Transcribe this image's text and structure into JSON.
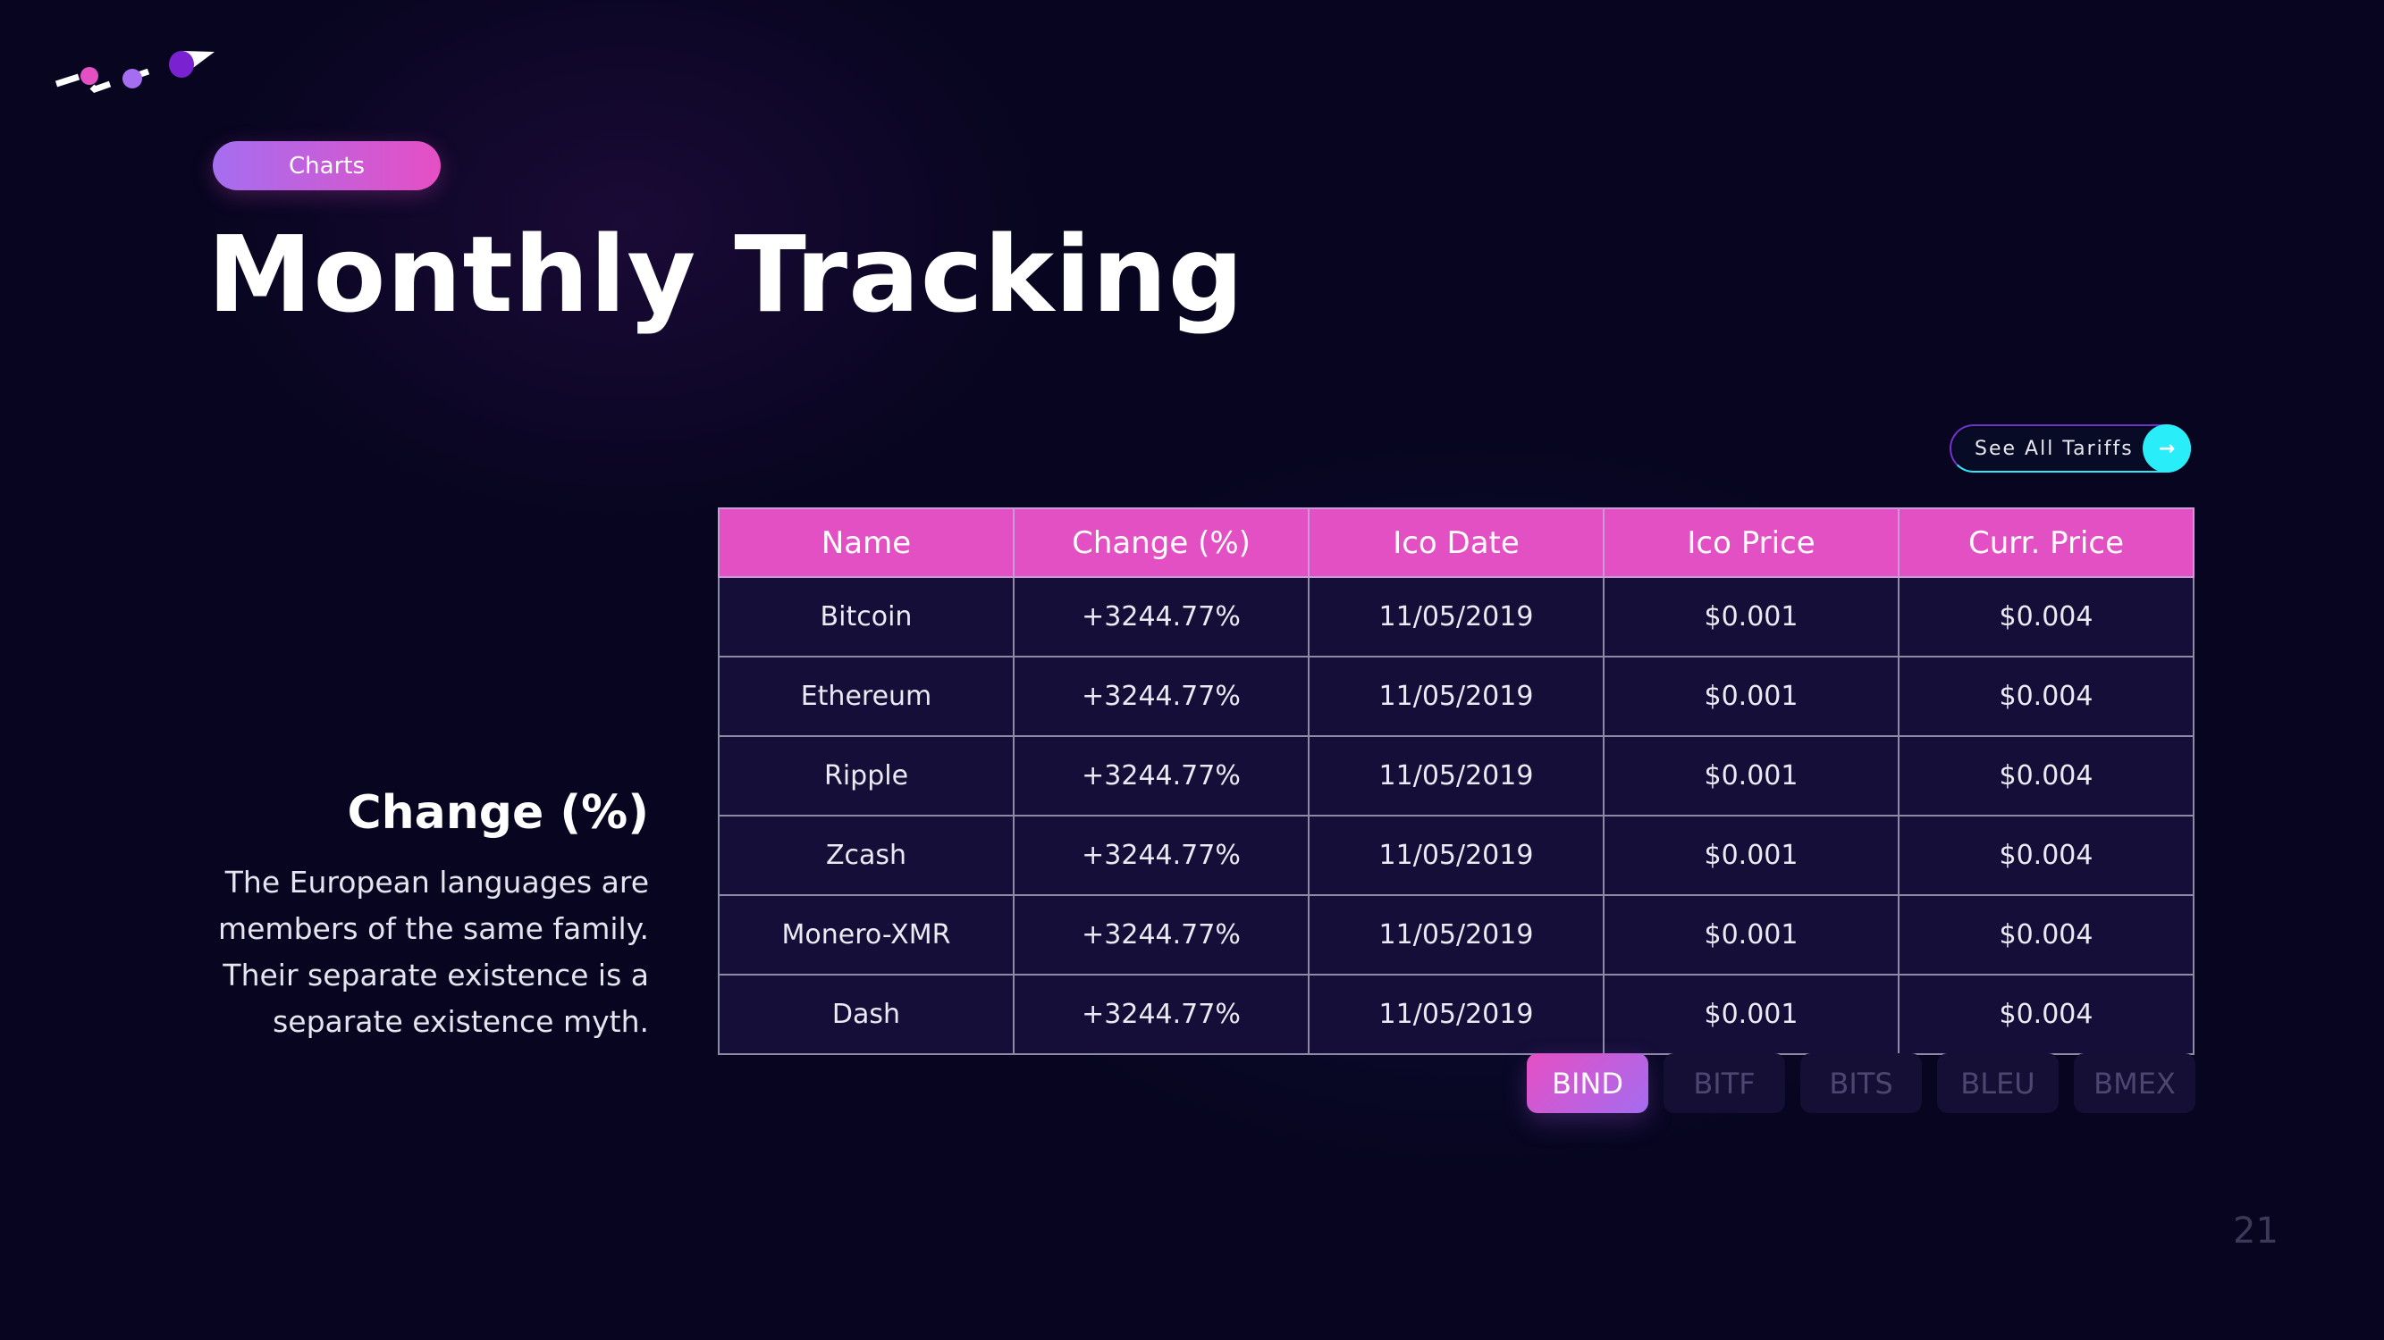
{
  "header": {
    "tag_label": "Charts",
    "title": "Monthly Tracking"
  },
  "side": {
    "heading": "Change (%)",
    "body": "The European languages are members of the same family. Their separate existence is a separate existence myth."
  },
  "tariffs_button": {
    "label": "See All Tariffs",
    "icon": "arrow-right-icon"
  },
  "table": {
    "columns": [
      "Name",
      "Change (%)",
      "Ico Date",
      "Ico Price",
      "Curr. Price"
    ],
    "rows": [
      [
        "Bitcoin",
        "+3244.77%",
        "11/05/2019",
        "$0.001",
        "$0.004"
      ],
      [
        "Ethereum",
        "+3244.77%",
        "11/05/2019",
        "$0.001",
        "$0.004"
      ],
      [
        "Ripple",
        "+3244.77%",
        "11/05/2019",
        "$0.001",
        "$0.004"
      ],
      [
        "Zcash",
        "+3244.77%",
        "11/05/2019",
        "$0.001",
        "$0.004"
      ],
      [
        "Monero-XMR",
        "+3244.77%",
        "11/05/2019",
        "$0.001",
        "$0.004"
      ],
      [
        "Dash",
        "+3244.77%",
        "11/05/2019",
        "$0.001",
        "$0.004"
      ]
    ]
  },
  "tabs": [
    {
      "label": "BIND",
      "active": true
    },
    {
      "label": "BITF"
    },
    {
      "label": "BITS"
    },
    {
      "label": "BLEU"
    },
    {
      "label": "BMEX"
    }
  ],
  "page_number": "21",
  "colors": {
    "accent_pink": "#e350c4",
    "accent_purple": "#a56ef0",
    "accent_cyan": "#29edf8",
    "background": "#07051f",
    "row_bg": "#150e38"
  }
}
